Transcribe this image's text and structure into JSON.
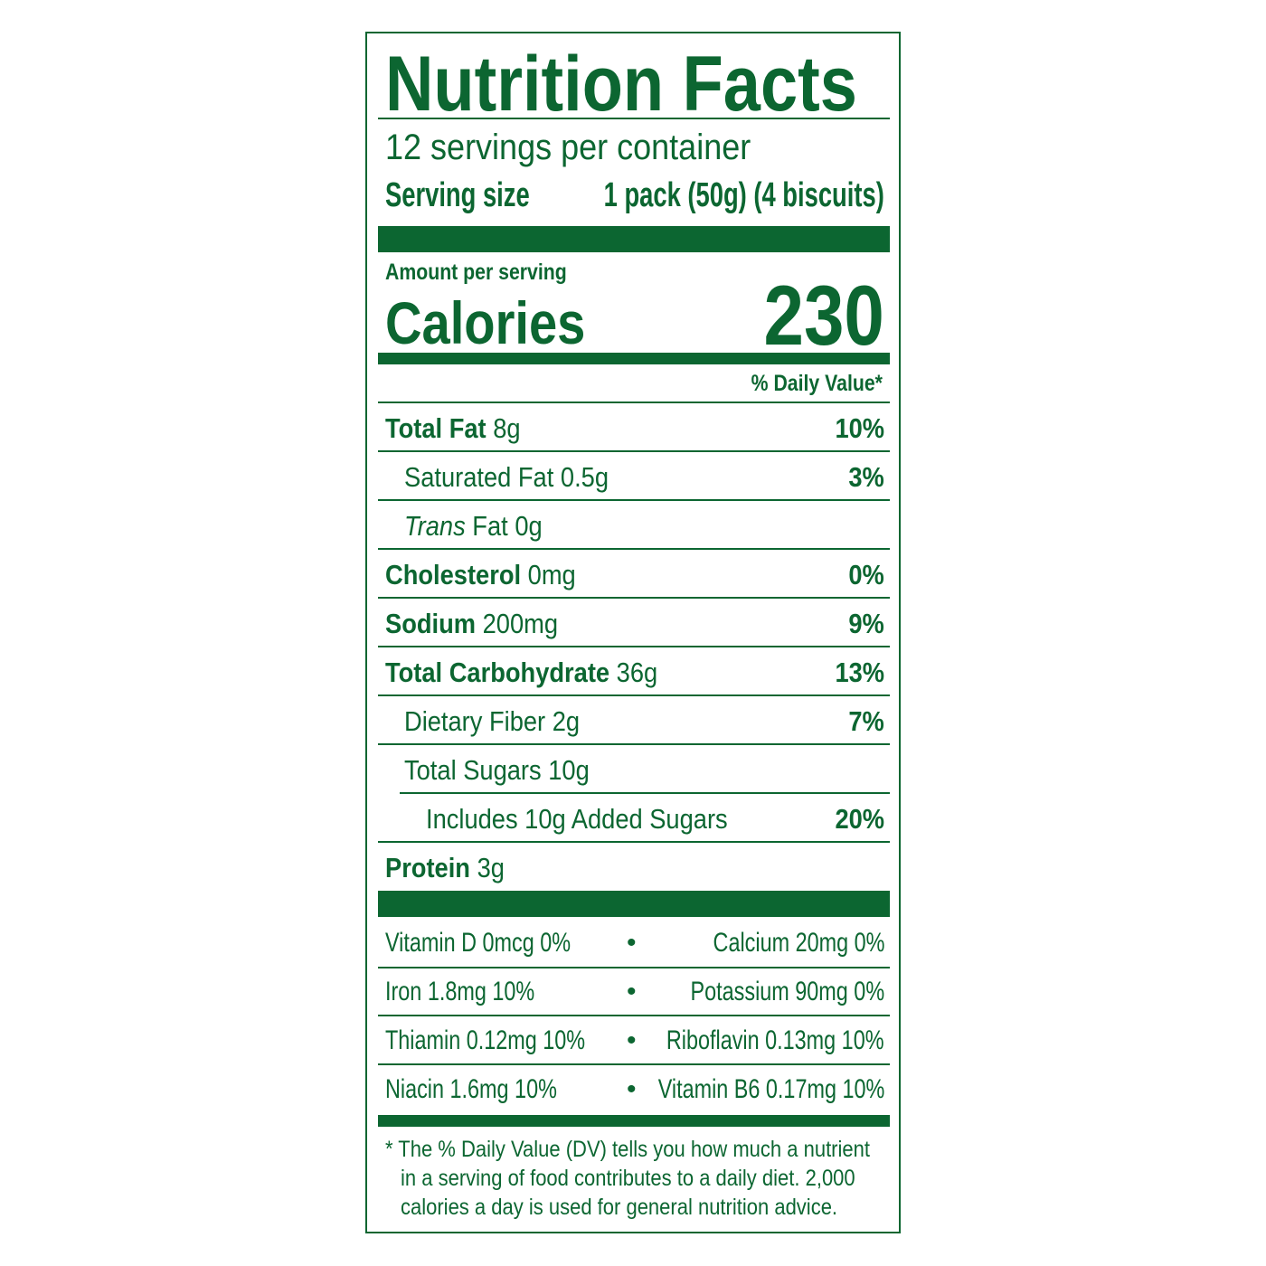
{
  "title": "Nutrition Facts",
  "servings_per_container": "12 servings per container",
  "serving_size": {
    "label": "Serving size",
    "value": "1 pack (50g) (4 biscuits)"
  },
  "amount_per_serving": "Amount per serving",
  "calories": {
    "label": "Calories",
    "value": "230"
  },
  "dv_header": "% Daily Value*",
  "nutrients": [
    {
      "name": "Total Fat",
      "amount": "8g",
      "dv": "10%"
    },
    {
      "name": "Saturated Fat",
      "amount": "0.5g",
      "dv": "3%"
    },
    {
      "name_italic": "Trans",
      "name": "Fat",
      "amount": "0g",
      "dv": ""
    },
    {
      "name": "Cholesterol",
      "amount": "0mg",
      "dv": "0%"
    },
    {
      "name": "Sodium",
      "amount": "200mg",
      "dv": "9%"
    },
    {
      "name": "Total Carbohydrate",
      "amount": "36g",
      "dv": "13%"
    },
    {
      "name": "Dietary Fiber",
      "amount": "2g",
      "dv": "7%"
    },
    {
      "name": "Total Sugars",
      "amount": "10g",
      "dv": ""
    },
    {
      "name": "Includes 10g Added Sugars",
      "amount": "",
      "dv": "20%"
    },
    {
      "name": "Protein",
      "amount": "3g",
      "dv": ""
    }
  ],
  "vitamins": [
    {
      "left": "Vitamin D 0mcg 0%",
      "right": "Calcium 20mg 0%"
    },
    {
      "left": "Iron 1.8mg 10%",
      "right": "Potassium 90mg 0%"
    },
    {
      "left": "Thiamin 0.12mg 10%",
      "right": "Riboflavin 0.13mg 10%"
    },
    {
      "left": "Niacin 1.6mg 10%",
      "right": "Vitamin B6 0.17mg 10%"
    }
  ],
  "bullet": "•",
  "footnote": [
    "* The % Daily Value (DV) tells you how much a nutrient",
    "in a serving of food contributes to a daily diet. 2,000",
    "calories a day is used for general nutrition advice."
  ],
  "colors": {
    "label_green": "#0c6631"
  }
}
